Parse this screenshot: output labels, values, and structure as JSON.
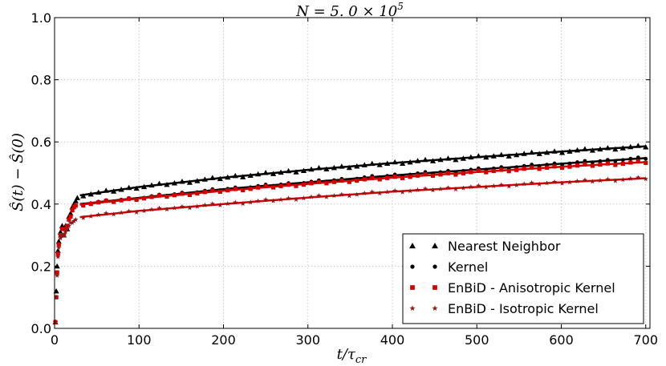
{
  "chart_data": {
    "type": "scatter",
    "title": "N = 5.0 × 10^5",
    "title_parts": {
      "base": "N = 5. 0 × 10",
      "exp": "5"
    },
    "xlabel": "t/τ_cr",
    "xlabel_parts": {
      "base": "t/τ",
      "sub": "cr"
    },
    "ylabel": "Ŝ(t) − Ŝ(0)",
    "xlim": [
      0,
      705
    ],
    "ylim": [
      0,
      1.0
    ],
    "xticks": [
      0,
      100,
      200,
      300,
      400,
      500,
      600,
      700
    ],
    "xtick_labels": [
      "0",
      "100",
      "200",
      "300",
      "400",
      "500",
      "600",
      "700"
    ],
    "yticks": [
      0.0,
      0.2,
      0.4,
      0.6,
      0.8,
      1.0
    ],
    "ytick_labels": [
      "0.0",
      "0.2",
      "0.4",
      "0.6",
      "0.8",
      "1.0"
    ],
    "grid": true,
    "legend_position": "lower-right",
    "series": [
      {
        "name": "Nearest Neighbor",
        "marker": "triangle",
        "color": "#000000",
        "line_color": "#000000",
        "early": [
          [
            1,
            0.02
          ],
          [
            2,
            0.12
          ],
          [
            3,
            0.2
          ],
          [
            4,
            0.25
          ],
          [
            5,
            0.28
          ],
          [
            7,
            0.31
          ],
          [
            9,
            0.33
          ],
          [
            11,
            0.3
          ],
          [
            13,
            0.33
          ],
          [
            15,
            0.32
          ],
          [
            17,
            0.36
          ],
          [
            19,
            0.37
          ],
          [
            21,
            0.39
          ],
          [
            23,
            0.4
          ],
          [
            25,
            0.41
          ],
          [
            27,
            0.42
          ]
        ],
        "curve": [
          [
            30,
            0.428
          ],
          [
            100,
            0.455
          ],
          [
            200,
            0.485
          ],
          [
            300,
            0.51
          ],
          [
            400,
            0.532
          ],
          [
            500,
            0.551
          ],
          [
            600,
            0.569
          ],
          [
            700,
            0.586
          ]
        ]
      },
      {
        "name": "Kernel",
        "marker": "circle",
        "color": "#000000",
        "line_color": "#000000",
        "early": [
          [
            1,
            0.02
          ],
          [
            2,
            0.1
          ],
          [
            3,
            0.18
          ],
          [
            4,
            0.24
          ],
          [
            5,
            0.27
          ],
          [
            7,
            0.3
          ],
          [
            9,
            0.32
          ],
          [
            11,
            0.3
          ],
          [
            13,
            0.32
          ],
          [
            15,
            0.33
          ],
          [
            17,
            0.35
          ],
          [
            19,
            0.36
          ],
          [
            21,
            0.38
          ],
          [
            23,
            0.39
          ],
          [
            25,
            0.395
          ]
        ],
        "curve": [
          [
            30,
            0.4
          ],
          [
            100,
            0.42
          ],
          [
            200,
            0.448
          ],
          [
            300,
            0.47
          ],
          [
            400,
            0.492
          ],
          [
            500,
            0.511
          ],
          [
            600,
            0.53
          ],
          [
            700,
            0.548
          ]
        ]
      },
      {
        "name": "EnBiD - Anisotropic Kernel",
        "marker": "square",
        "color": "#d40000",
        "line_color": "#d40000",
        "early": [
          [
            1,
            0.02
          ],
          [
            2,
            0.1
          ],
          [
            3,
            0.18
          ],
          [
            4,
            0.24
          ],
          [
            5,
            0.27
          ],
          [
            7,
            0.3
          ],
          [
            9,
            0.32
          ],
          [
            11,
            0.3
          ],
          [
            13,
            0.32
          ],
          [
            15,
            0.33
          ],
          [
            17,
            0.35
          ],
          [
            19,
            0.36
          ],
          [
            21,
            0.38
          ],
          [
            23,
            0.39
          ],
          [
            25,
            0.395
          ]
        ],
        "curve": [
          [
            30,
            0.398
          ],
          [
            100,
            0.418
          ],
          [
            200,
            0.443
          ],
          [
            300,
            0.465
          ],
          [
            400,
            0.485
          ],
          [
            500,
            0.503
          ],
          [
            600,
            0.52
          ],
          [
            700,
            0.535
          ]
        ]
      },
      {
        "name": "EnBiD - Isotropic Kernel",
        "marker": "star",
        "color": "#8b1a1a",
        "line_color": "#d40000",
        "early": [
          [
            1,
            0.02
          ],
          [
            2,
            0.1
          ],
          [
            3,
            0.17
          ],
          [
            4,
            0.23
          ],
          [
            5,
            0.26
          ],
          [
            7,
            0.29
          ],
          [
            9,
            0.3
          ],
          [
            11,
            0.3
          ],
          [
            13,
            0.31
          ],
          [
            15,
            0.32
          ],
          [
            17,
            0.33
          ],
          [
            19,
            0.34
          ],
          [
            21,
            0.34
          ],
          [
            23,
            0.345
          ],
          [
            25,
            0.35
          ]
        ],
        "curve": [
          [
            30,
            0.358
          ],
          [
            100,
            0.378
          ],
          [
            200,
            0.4
          ],
          [
            300,
            0.421
          ],
          [
            400,
            0.44
          ],
          [
            500,
            0.455
          ],
          [
            600,
            0.47
          ],
          [
            700,
            0.483
          ]
        ]
      }
    ]
  }
}
